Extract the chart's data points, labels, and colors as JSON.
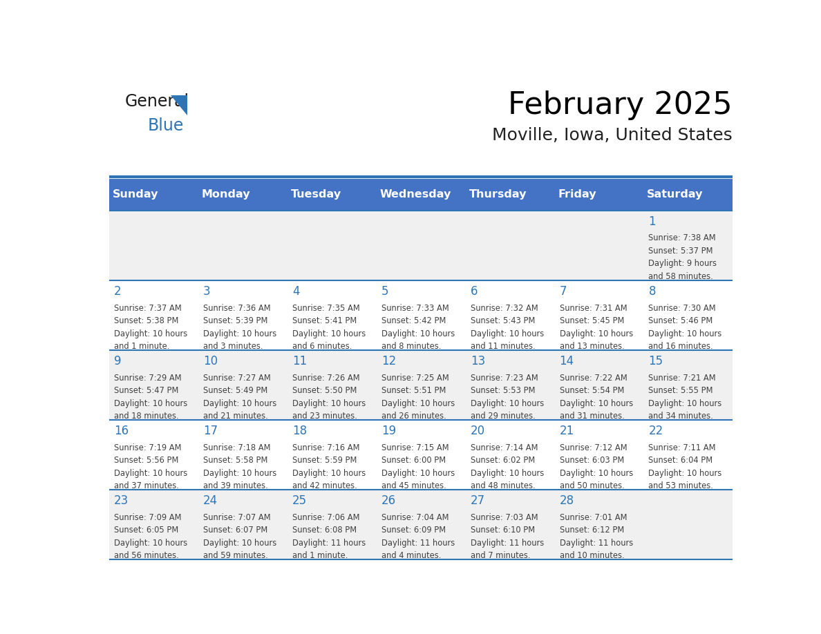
{
  "title": "February 2025",
  "subtitle": "Moville, Iowa, United States",
  "header_bg": "#4472C4",
  "header_text_color": "#FFFFFF",
  "cell_bg_odd": "#F0F0F0",
  "cell_bg_even": "#FFFFFF",
  "day_headers": [
    "Sunday",
    "Monday",
    "Tuesday",
    "Wednesday",
    "Thursday",
    "Friday",
    "Saturday"
  ],
  "header_line_color": "#2E75B6",
  "day_number_color": "#2E75B6",
  "info_text_color": "#404040",
  "weeks": [
    [
      {
        "day": null,
        "info": ""
      },
      {
        "day": null,
        "info": ""
      },
      {
        "day": null,
        "info": ""
      },
      {
        "day": null,
        "info": ""
      },
      {
        "day": null,
        "info": ""
      },
      {
        "day": null,
        "info": ""
      },
      {
        "day": 1,
        "info": "Sunrise: 7:38 AM\nSunset: 5:37 PM\nDaylight: 9 hours\nand 58 minutes."
      }
    ],
    [
      {
        "day": 2,
        "info": "Sunrise: 7:37 AM\nSunset: 5:38 PM\nDaylight: 10 hours\nand 1 minute."
      },
      {
        "day": 3,
        "info": "Sunrise: 7:36 AM\nSunset: 5:39 PM\nDaylight: 10 hours\nand 3 minutes."
      },
      {
        "day": 4,
        "info": "Sunrise: 7:35 AM\nSunset: 5:41 PM\nDaylight: 10 hours\nand 6 minutes."
      },
      {
        "day": 5,
        "info": "Sunrise: 7:33 AM\nSunset: 5:42 PM\nDaylight: 10 hours\nand 8 minutes."
      },
      {
        "day": 6,
        "info": "Sunrise: 7:32 AM\nSunset: 5:43 PM\nDaylight: 10 hours\nand 11 minutes."
      },
      {
        "day": 7,
        "info": "Sunrise: 7:31 AM\nSunset: 5:45 PM\nDaylight: 10 hours\nand 13 minutes."
      },
      {
        "day": 8,
        "info": "Sunrise: 7:30 AM\nSunset: 5:46 PM\nDaylight: 10 hours\nand 16 minutes."
      }
    ],
    [
      {
        "day": 9,
        "info": "Sunrise: 7:29 AM\nSunset: 5:47 PM\nDaylight: 10 hours\nand 18 minutes."
      },
      {
        "day": 10,
        "info": "Sunrise: 7:27 AM\nSunset: 5:49 PM\nDaylight: 10 hours\nand 21 minutes."
      },
      {
        "day": 11,
        "info": "Sunrise: 7:26 AM\nSunset: 5:50 PM\nDaylight: 10 hours\nand 23 minutes."
      },
      {
        "day": 12,
        "info": "Sunrise: 7:25 AM\nSunset: 5:51 PM\nDaylight: 10 hours\nand 26 minutes."
      },
      {
        "day": 13,
        "info": "Sunrise: 7:23 AM\nSunset: 5:53 PM\nDaylight: 10 hours\nand 29 minutes."
      },
      {
        "day": 14,
        "info": "Sunrise: 7:22 AM\nSunset: 5:54 PM\nDaylight: 10 hours\nand 31 minutes."
      },
      {
        "day": 15,
        "info": "Sunrise: 7:21 AM\nSunset: 5:55 PM\nDaylight: 10 hours\nand 34 minutes."
      }
    ],
    [
      {
        "day": 16,
        "info": "Sunrise: 7:19 AM\nSunset: 5:56 PM\nDaylight: 10 hours\nand 37 minutes."
      },
      {
        "day": 17,
        "info": "Sunrise: 7:18 AM\nSunset: 5:58 PM\nDaylight: 10 hours\nand 39 minutes."
      },
      {
        "day": 18,
        "info": "Sunrise: 7:16 AM\nSunset: 5:59 PM\nDaylight: 10 hours\nand 42 minutes."
      },
      {
        "day": 19,
        "info": "Sunrise: 7:15 AM\nSunset: 6:00 PM\nDaylight: 10 hours\nand 45 minutes."
      },
      {
        "day": 20,
        "info": "Sunrise: 7:14 AM\nSunset: 6:02 PM\nDaylight: 10 hours\nand 48 minutes."
      },
      {
        "day": 21,
        "info": "Sunrise: 7:12 AM\nSunset: 6:03 PM\nDaylight: 10 hours\nand 50 minutes."
      },
      {
        "day": 22,
        "info": "Sunrise: 7:11 AM\nSunset: 6:04 PM\nDaylight: 10 hours\nand 53 minutes."
      }
    ],
    [
      {
        "day": 23,
        "info": "Sunrise: 7:09 AM\nSunset: 6:05 PM\nDaylight: 10 hours\nand 56 minutes."
      },
      {
        "day": 24,
        "info": "Sunrise: 7:07 AM\nSunset: 6:07 PM\nDaylight: 10 hours\nand 59 minutes."
      },
      {
        "day": 25,
        "info": "Sunrise: 7:06 AM\nSunset: 6:08 PM\nDaylight: 11 hours\nand 1 minute."
      },
      {
        "day": 26,
        "info": "Sunrise: 7:04 AM\nSunset: 6:09 PM\nDaylight: 11 hours\nand 4 minutes."
      },
      {
        "day": 27,
        "info": "Sunrise: 7:03 AM\nSunset: 6:10 PM\nDaylight: 11 hours\nand 7 minutes."
      },
      {
        "day": 28,
        "info": "Sunrise: 7:01 AM\nSunset: 6:12 PM\nDaylight: 11 hours\nand 10 minutes."
      },
      {
        "day": null,
        "info": ""
      }
    ]
  ]
}
